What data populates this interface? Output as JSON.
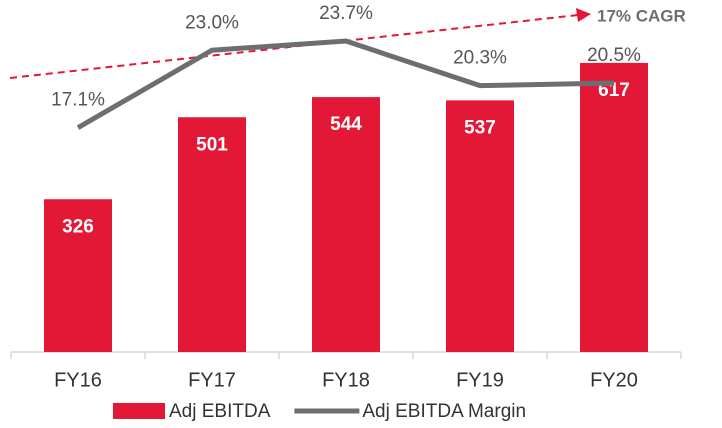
{
  "chart_data": {
    "type": "bar",
    "categories": [
      "FY16",
      "FY17",
      "FY18",
      "FY19",
      "FY20"
    ],
    "ylim": [
      0,
      700
    ],
    "y2lim": [
      0,
      25
    ],
    "series": [
      {
        "name": "Adj EBITDA",
        "type": "bar",
        "color": "#e31837",
        "values": [
          326,
          501,
          544,
          537,
          617
        ]
      },
      {
        "name": "Adj EBITDA Margin",
        "type": "line",
        "axis": "y2",
        "color": "#6d6e71",
        "values": [
          17.1,
          23.0,
          23.7,
          20.3,
          20.5
        ],
        "value_labels": [
          "17.1%",
          "23.0%",
          "23.7%",
          "20.3%",
          "20.5%"
        ]
      }
    ],
    "annotation": "17% CAGR"
  }
}
